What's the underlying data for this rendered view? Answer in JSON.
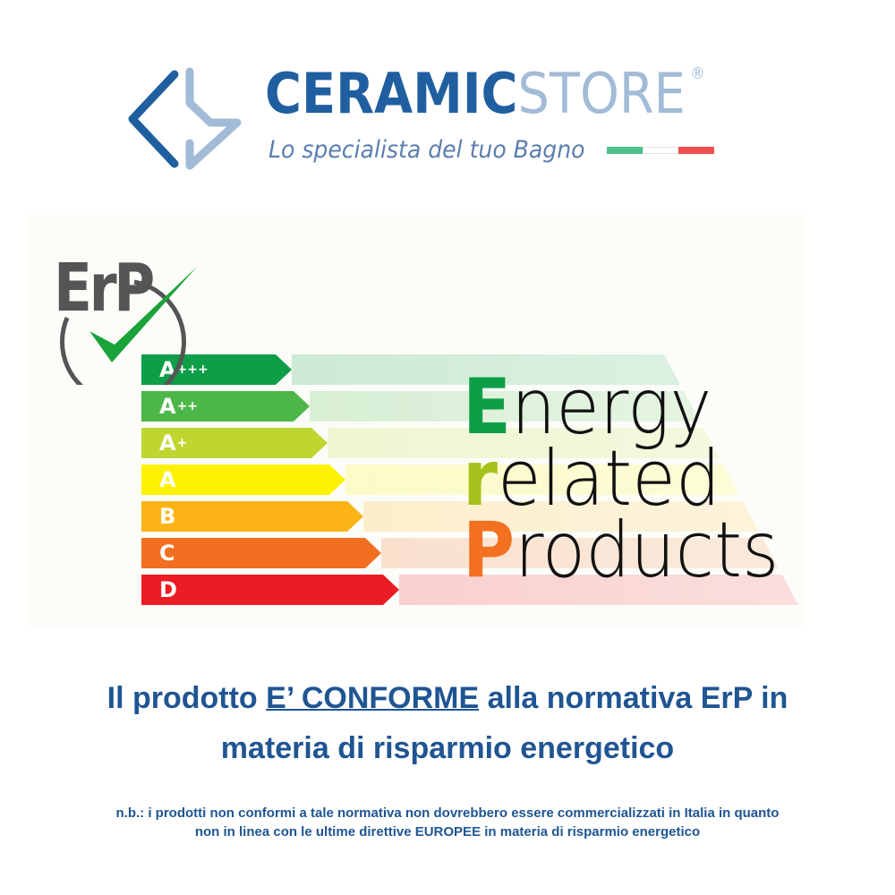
{
  "brand": {
    "name_part1": "CERAMIC",
    "name_part2": "STORE",
    "registered": "®",
    "tagline": "Lo specialista del tuo Bagno",
    "colors": {
      "primary": "#1f5fa0",
      "secondary": "#a2bbd6"
    }
  },
  "erp_logo": {
    "text": "ErP",
    "check_color": "#1aa33a"
  },
  "energy_classes": [
    {
      "label": "A",
      "sup": "+++",
      "color": "#0e9e48"
    },
    {
      "label": "A",
      "sup": "++",
      "color": "#4cb748"
    },
    {
      "label": "A",
      "sup": "+",
      "color": "#bfd630"
    },
    {
      "label": "A",
      "sup": "",
      "color": "#fff200"
    },
    {
      "label": "B",
      "sup": "",
      "color": "#fbb316"
    },
    {
      "label": "C",
      "sup": "",
      "color": "#f26f22"
    },
    {
      "label": "D",
      "sup": "",
      "color": "#ec1c24"
    }
  ],
  "erp_title": {
    "l1_initial": "E",
    "l1_rest": "nergy",
    "l2_initial": "r",
    "l2_rest": "elated",
    "l3_initial": "P",
    "l3_rest": "roducts"
  },
  "headline": {
    "part1": "Il prodotto ",
    "underlined": "E’ CONFORME",
    "part2": " alla normativa ErP in",
    "line2": "materia di risparmio energetico"
  },
  "note": {
    "line1": "n.b.: i prodotti non conformi a tale normativa non dovrebbero essere commercializzati in Italia in quanto",
    "line2_a": "non in linea con le ultime direttive ",
    "line2_b": "EUROPEE",
    "line2_c": " in materia di risparmio energetico"
  }
}
